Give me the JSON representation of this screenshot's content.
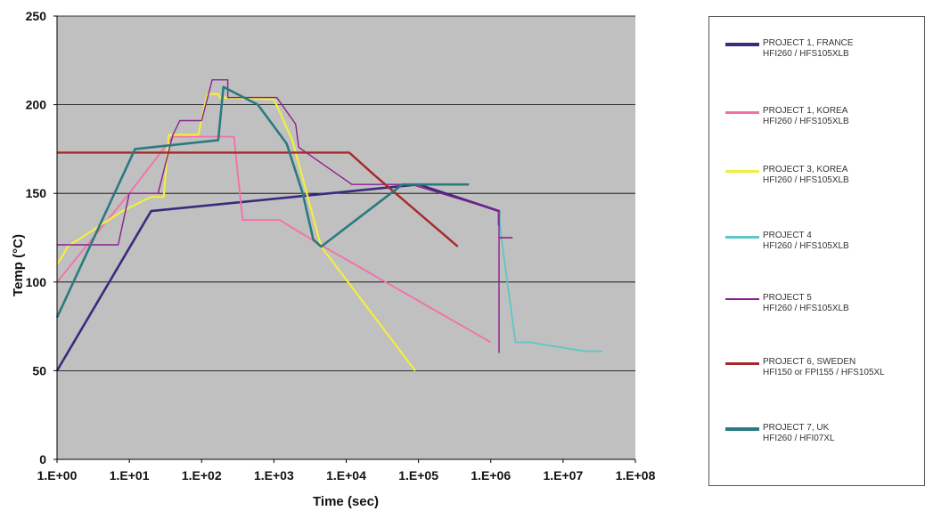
{
  "chart_data": {
    "type": "line",
    "xlabel": "Time (sec)",
    "ylabel": "Temp (°C)",
    "x_scale": "log",
    "xlim": [
      1,
      100000000
    ],
    "ylim": [
      0,
      250
    ],
    "x_ticks": [
      "1.E+00",
      "1.E+01",
      "1.E+02",
      "1.E+03",
      "1.E+04",
      "1.E+05",
      "1.E+06",
      "1.E+07",
      "1.E+08"
    ],
    "y_ticks": [
      "0",
      "50",
      "100",
      "150",
      "200",
      "250"
    ],
    "grid": "horizontal",
    "plot_background": "#c0c0c0",
    "legend_position": "right",
    "series": [
      {
        "name": "PROJECT 1, FRANCE",
        "name_line2": "HFI260 / HFS105XLB",
        "color": "#3b2a7e",
        "points": [
          [
            1,
            50
          ],
          [
            20,
            140
          ],
          [
            100000,
            155
          ],
          [
            1300000,
            140
          ],
          [
            1300000,
            132
          ]
        ]
      },
      {
        "name": "PROJECT 1, KOREA",
        "name_line2": "HFI260 / HFS105XLB",
        "color": "#f36fa8",
        "points": [
          [
            1,
            100
          ],
          [
            10,
            150
          ],
          [
            40,
            182
          ],
          [
            280,
            182
          ],
          [
            370,
            135
          ],
          [
            1200,
            135
          ],
          [
            4000,
            122
          ],
          [
            1000000,
            66
          ]
        ]
      },
      {
        "name": "PROJECT 3, KOREA",
        "name_line2": "HFI260 / HFS105XLB",
        "color": "#f2ee3f",
        "points": [
          [
            1,
            110
          ],
          [
            1.2,
            115
          ],
          [
            1.4,
            120
          ],
          [
            8,
            140
          ],
          [
            20,
            148
          ],
          [
            30,
            148
          ],
          [
            35,
            183
          ],
          [
            90,
            183
          ],
          [
            120,
            206
          ],
          [
            170,
            206
          ],
          [
            180,
            204
          ],
          [
            1000,
            203
          ],
          [
            1800,
            180
          ],
          [
            4500,
            120
          ],
          [
            90000,
            50
          ]
        ]
      },
      {
        "name": "PROJECT 4",
        "name_line2": "HFI260 / HFS105XLB",
        "color": "#5fc6c8",
        "points": [
          [
            1300000,
            140
          ],
          [
            1400000,
            125
          ],
          [
            2200000,
            66
          ],
          [
            3500000,
            66
          ],
          [
            20000000,
            61
          ],
          [
            35000000,
            61
          ]
        ]
      },
      {
        "name": "PROJECT 5",
        "name_line2": "HFI260 / HFS105XLB",
        "color": "#8b1f91",
        "points": [
          [
            1,
            121
          ],
          [
            7,
            121
          ],
          [
            10,
            150
          ],
          [
            25,
            150
          ],
          [
            40,
            183
          ],
          [
            50,
            191
          ],
          [
            100,
            191
          ],
          [
            140,
            214
          ],
          [
            230,
            214
          ],
          [
            230,
            204
          ],
          [
            1100,
            204
          ],
          [
            2000,
            189
          ],
          [
            2200,
            176
          ],
          [
            12000,
            155
          ],
          [
            80000,
            155
          ],
          [
            1300000,
            140
          ],
          [
            1300000,
            60
          ]
        ]
      },
      {
        "name": "PROJECT 6, SWEDEN",
        "name_line2": "HFI150 or FPI155 / HFS105XL",
        "color": "#a7282b",
        "points": [
          [
            1,
            173
          ],
          [
            11000,
            173
          ],
          [
            25000,
            160
          ],
          [
            350000,
            120
          ]
        ]
      },
      {
        "name": "PROJECT 7, UK",
        "name_line2": "HFI260 / HFI07XL",
        "color": "#2b7a80",
        "points": [
          [
            1,
            80
          ],
          [
            12,
            175
          ],
          [
            170,
            180
          ],
          [
            200,
            210
          ],
          [
            600,
            200
          ],
          [
            1500,
            178
          ],
          [
            2500,
            150
          ],
          [
            3500,
            124
          ],
          [
            4500,
            120
          ],
          [
            60000,
            155
          ],
          [
            500000,
            155
          ]
        ]
      }
    ],
    "extra_marks": [
      {
        "color": "#8b1f91",
        "points": [
          [
            1300000,
            125
          ],
          [
            2000000,
            125
          ]
        ]
      }
    ]
  }
}
